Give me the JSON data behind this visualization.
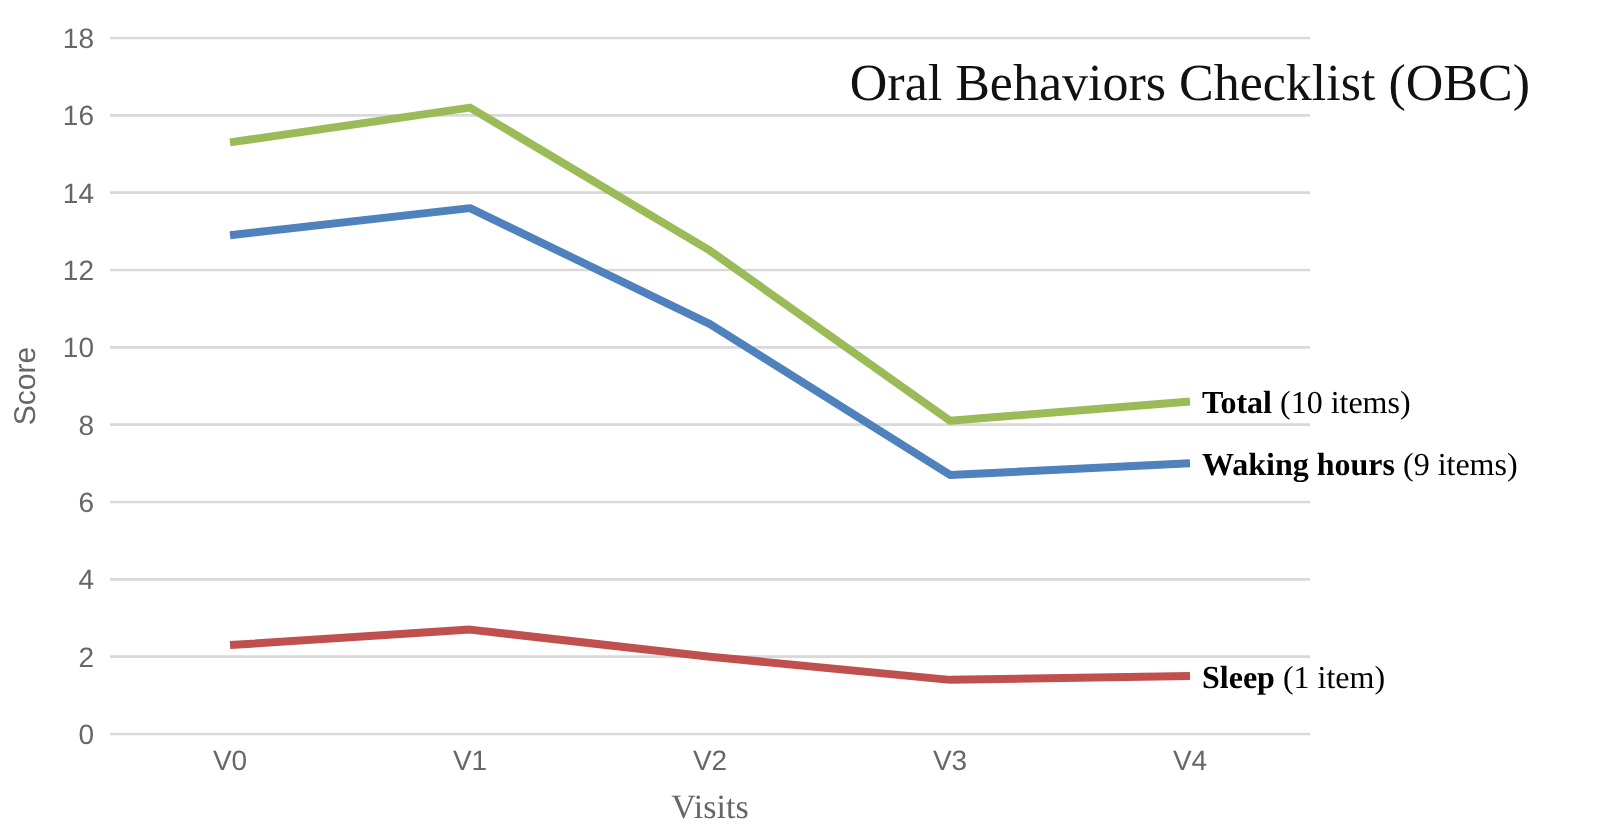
{
  "chart_data": {
    "type": "line",
    "title": "Oral Behaviors Checklist (OBC)",
    "xlabel": "Visits",
    "ylabel": "Score",
    "categories": [
      "V0",
      "V1",
      "V2",
      "V3",
      "V4"
    ],
    "series": [
      {
        "name": "Total (10 items)",
        "color": "#9bbb59",
        "values": [
          15.3,
          16.2,
          12.5,
          8.1,
          8.6
        ]
      },
      {
        "name": "Waking hours (9 items)",
        "color": "#4f81bd",
        "values": [
          12.9,
          13.6,
          10.6,
          6.7,
          7.0
        ]
      },
      {
        "name": "Sleep (1 item)",
        "color": "#c0504d",
        "values": [
          2.3,
          2.7,
          2.0,
          1.4,
          1.5
        ]
      }
    ],
    "ylim": [
      0,
      18
    ],
    "yticks": [
      0,
      2,
      4,
      6,
      8,
      10,
      12,
      14,
      16,
      18
    ],
    "grid": "y",
    "legend": false,
    "marker": "none",
    "line_style": "solid"
  }
}
